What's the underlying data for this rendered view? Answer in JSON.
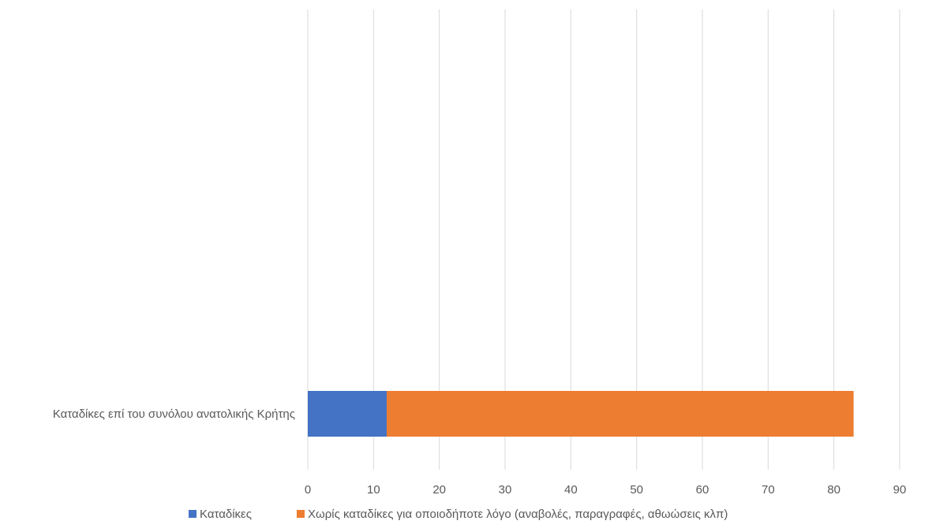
{
  "chart_data": {
    "type": "bar",
    "orientation": "horizontal",
    "stacked": true,
    "categories": [
      "Καταδίκες επί του συνόλου ανατολικής Κρήτης"
    ],
    "series": [
      {
        "name": "Καταδίκες",
        "values": [
          12
        ],
        "color": "#4472C4"
      },
      {
        "name": "Χωρίς καταδίκες για οποιοδήποτε λόγο (αναβολές, παραγραφές, αθωώσεις κλπ)",
        "values": [
          71
        ],
        "color": "#ED7D31"
      }
    ],
    "xlim": [
      0,
      90
    ],
    "xticks": [
      "0",
      "10",
      "20",
      "30",
      "40",
      "50",
      "60",
      "70",
      "80",
      "90"
    ],
    "grid": true,
    "legend_position": "bottom",
    "title": "",
    "xlabel": "",
    "ylabel": ""
  }
}
